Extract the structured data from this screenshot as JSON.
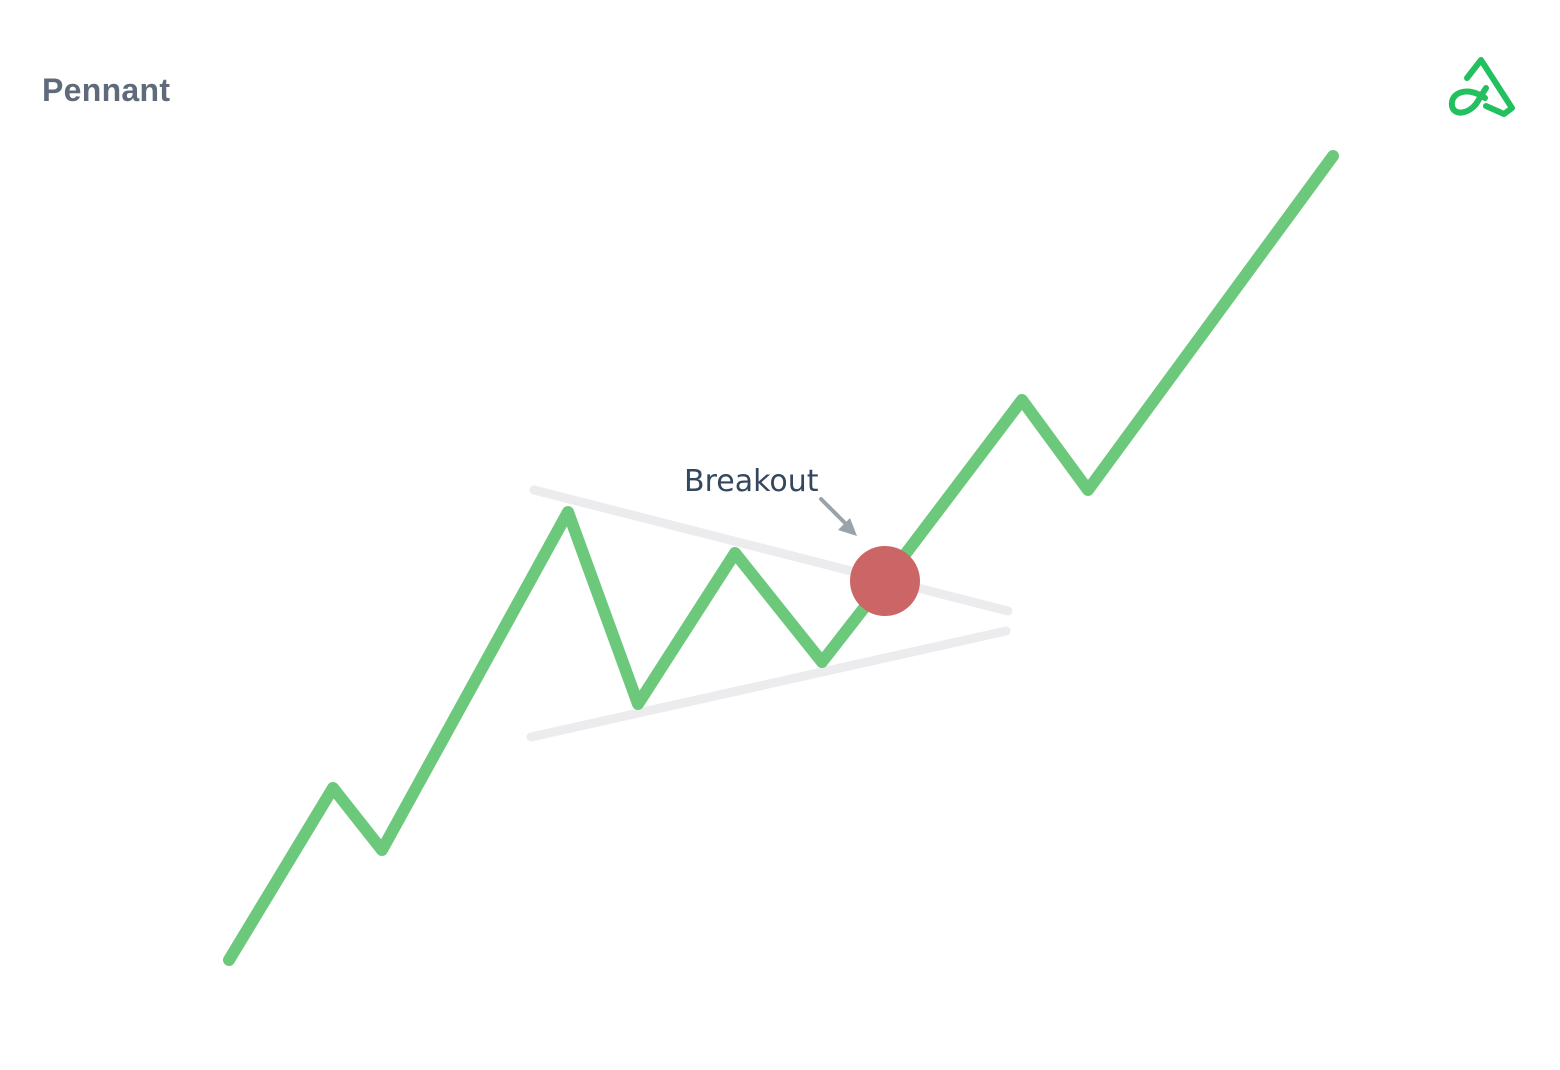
{
  "title": "Pennant",
  "annotation": {
    "label": "Breakout"
  },
  "colors": {
    "price_line": "#6cc97c",
    "trendline": "#ececee",
    "breakout_marker": "#cc6566",
    "annotation_text": "#34475e",
    "annotation_arrow": "#9aa2ab",
    "title_text": "#5f6b7a",
    "brand": "#22c05e"
  },
  "icons": {
    "brand_logo": "brand-logo-icon"
  }
}
